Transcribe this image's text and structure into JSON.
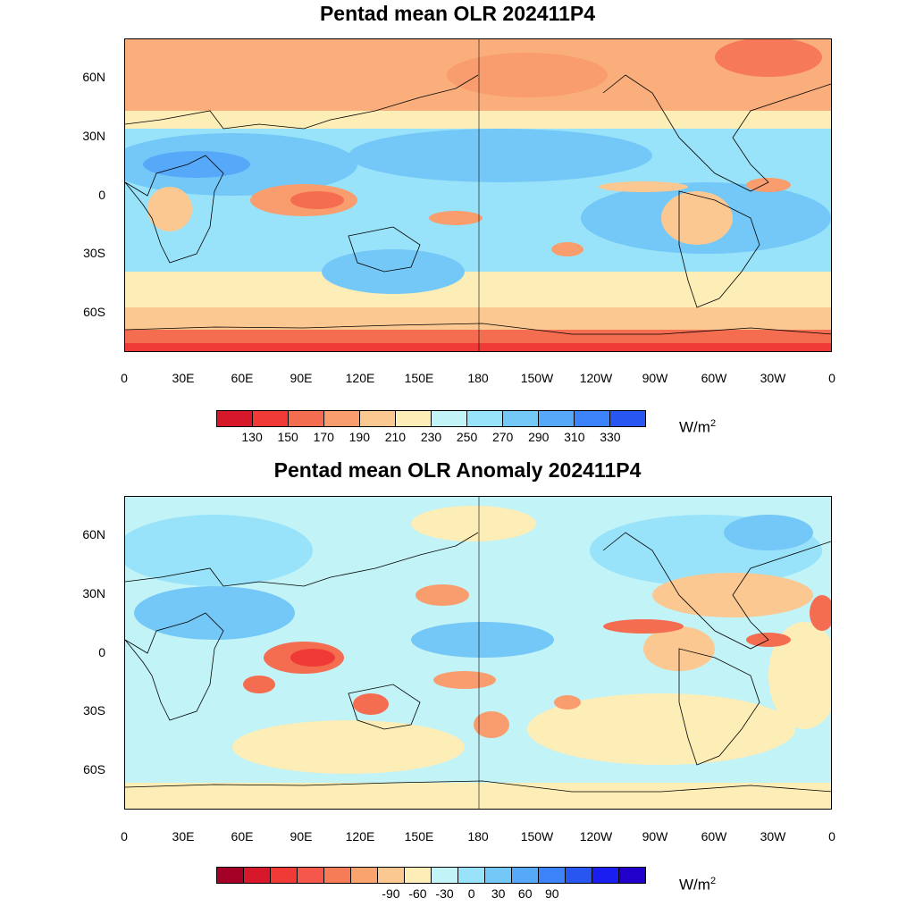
{
  "panels": [
    {
      "title": "Pentad mean OLR 202411P4",
      "units_base": "W/m",
      "units_exp": "2",
      "lat_labels": [
        "60N",
        "30N",
        "0",
        "30S",
        "60S"
      ],
      "lon_labels": [
        "0",
        "30E",
        "60E",
        "90E",
        "120E",
        "150E",
        "180",
        "150W",
        "120W",
        "90W",
        "60W",
        "30W",
        "0"
      ],
      "colorbar": {
        "colors": [
          "#d7182a",
          "#ef3a36",
          "#f56d50",
          "#f99d6e",
          "#fcc891",
          "#fdedb6",
          "#c2f3f7",
          "#99e3fa",
          "#74c8f7",
          "#56a9f9",
          "#3c82f8",
          "#2756f0"
        ],
        "labels": [
          "130",
          "150",
          "170",
          "190",
          "210",
          "230",
          "250",
          "270",
          "290",
          "310",
          "330"
        ]
      }
    },
    {
      "title": "Pentad mean OLR Anomaly 202411P4",
      "units_base": "W/m",
      "units_exp": "2",
      "lat_labels": [
        "60N",
        "30N",
        "0",
        "30S",
        "60S"
      ],
      "lon_labels": [
        "0",
        "30E",
        "60E",
        "90E",
        "120E",
        "150E",
        "180",
        "150W",
        "120W",
        "90W",
        "60W",
        "30W",
        "0"
      ],
      "colorbar": {
        "colors": [
          "#a50026",
          "#d7182a",
          "#ef3a36",
          "#f5574a",
          "#f67b57",
          "#f9a36f",
          "#fcc891",
          "#fdedb6",
          "#c2f3f7",
          "#99e3fa",
          "#74c8f7",
          "#56a9f9",
          "#3c82f8",
          "#2756f0",
          "#1a1ef0",
          "#2200cc"
        ],
        "labels": [
          "-90",
          "-60",
          "-30",
          "0",
          "30",
          "60",
          "90"
        ],
        "label_box_index": [
          2,
          5,
          8,
          11,
          14,
          17,
          20
        ]
      }
    }
  ],
  "map_colors": {
    "p1": {
      "base": "#fdedb6",
      "cold": "#fcc891",
      "warm": "#f99d6e",
      "hot": "#f56d50",
      "band": "#74c8f7",
      "band2": "#99e3fa",
      "band3": "#56a9f9",
      "deep": "#ef3a36"
    },
    "p2": {
      "base": "#c2f3f7",
      "light": "#99e3fa",
      "blue": "#74c8f7",
      "tan": "#fdedb6",
      "orange": "#fcc891",
      "red": "#f56d50",
      "dred": "#ef3a36"
    }
  }
}
